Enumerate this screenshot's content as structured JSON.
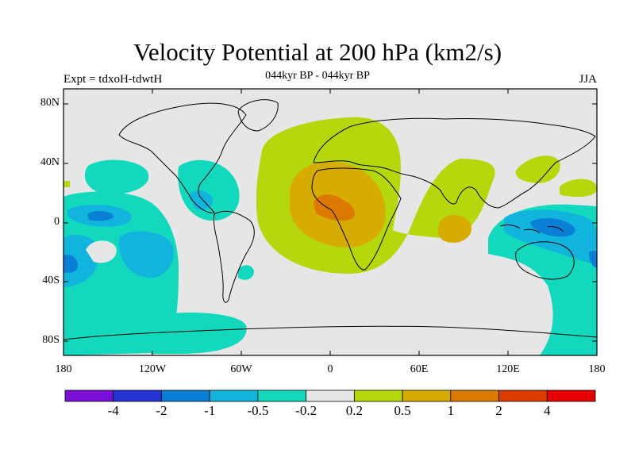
{
  "title": "Velocity Potential at 200 hPa (km2/s)",
  "subtitle": "044kyr BP - 044kyr BP",
  "left_label": "Expt = tdxoH-tdwtH",
  "right_label": "JJA",
  "lat_labels": [
    "80N",
    "40N",
    "0",
    "40S",
    "80S"
  ],
  "lon_labels": [
    "180",
    "120W",
    "60W",
    "0",
    "60E",
    "120E",
    "180"
  ],
  "colorbar": {
    "colors": [
      "#7a10d8",
      "#2433d6",
      "#0a7fd6",
      "#10b4dc",
      "#12d9be",
      "#e6e6e6",
      "#b4d80c",
      "#d6ac00",
      "#dc7a00",
      "#dc3c00",
      "#e60000"
    ],
    "labels": [
      "-4",
      "-2",
      "-1",
      "-0.5",
      "-0.2",
      "0.2",
      "0.5",
      "1",
      "2",
      "4"
    ]
  },
  "colors": {
    "land_background": "#e6e6e6",
    "coastline": "#000000"
  }
}
